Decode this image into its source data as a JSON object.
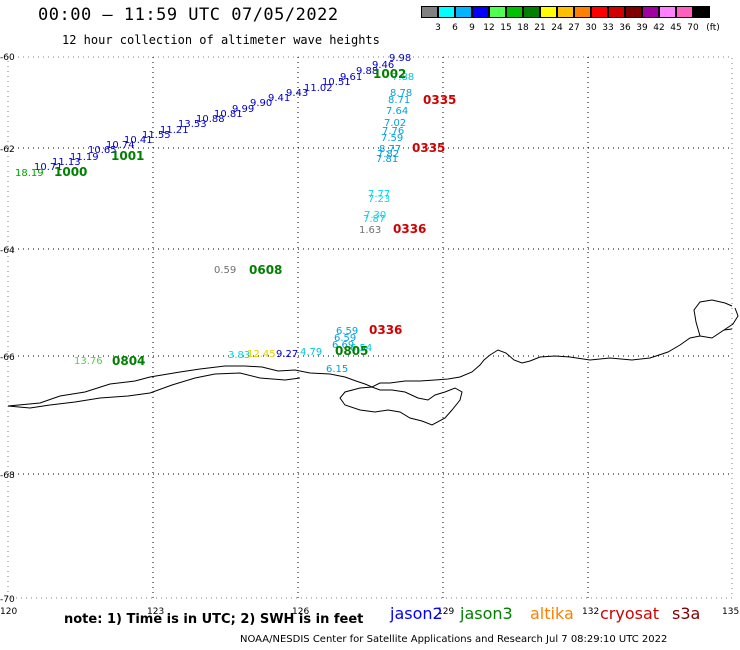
{
  "title": "00:00 – 11:59 UTC 07/05/2022",
  "subtitle": "12 hour collection of altimeter wave heights",
  "colorbar": {
    "colors": [
      "#808080",
      "#00ffff",
      "#00b4ff",
      "#0000ff",
      "#50ff50",
      "#00c000",
      "#008000",
      "#ffff00",
      "#ffc000",
      "#ff8000",
      "#ff0000",
      "#d00000",
      "#800000",
      "#a000a0",
      "#ff80ff",
      "#ff60c0",
      "#000000"
    ],
    "labels": [
      "3",
      "6",
      "9",
      "12",
      "15",
      "18",
      "21",
      "24",
      "27",
      "30",
      "33",
      "36",
      "39",
      "42",
      "45",
      "70"
    ],
    "unit": "(ft)"
  },
  "axes": {
    "x_ticks": [
      "120",
      "123",
      "126",
      "129",
      "132",
      "135"
    ],
    "y_ticks": [
      "-60",
      "-62",
      "-64",
      "-66",
      "-68",
      "-70"
    ]
  },
  "observations": {
    "jason2_track": [
      "18.19",
      "10.71",
      "11.13",
      "11.19",
      "10.65",
      "10.74",
      "10.41",
      "11.55",
      "11.21",
      "13.53",
      "10.88",
      "10.81",
      "9.99",
      "9.90",
      "9.41",
      "9.43",
      "11.02",
      "10.51",
      "9.61",
      "9.88",
      "9.46",
      "9.98"
    ],
    "cyan_cluster": [
      "7.88",
      "8.78",
      "8.71",
      "7.64",
      "7.02",
      "7.76",
      "7.59",
      "8.77",
      "7.82",
      "7.81",
      "7.77",
      "7.23",
      "7.30",
      "7.87",
      "6.59",
      "6.59",
      "6.69",
      "6.15",
      "3.83",
      "9.27",
      "4.79",
      "6.54"
    ],
    "misc": [
      "1.63",
      "0.59",
      "13.76",
      "12.45"
    ]
  },
  "time_marks": {
    "jason3_1": "1002",
    "jason3_2": "1001",
    "jason3_3": "1000",
    "jason3_4": "0608",
    "jason3_5": "0805",
    "jason3_6": "0804",
    "cryosat_1": "0335",
    "cryosat_2": "0335",
    "cryosat_3": "0336",
    "cryosat_4": "0336"
  },
  "note": "note:  1) Time is in UTC;  2) SWH is in feet",
  "legend": {
    "jason2": {
      "label": "jason2",
      "color": "#0000ff"
    },
    "jason3": {
      "label": "jason3",
      "color": "#008000"
    },
    "altika": {
      "label": "altika",
      "color": "#ff8000"
    },
    "cryosat": {
      "label": "cryosat",
      "color": "#d00000"
    },
    "s3a": {
      "label": "s3a",
      "color": "#800000"
    }
  },
  "credit": "NOAA/NESDIS Center for Satellite Applications and Research    Jul  7 08:29:10 UTC 2022"
}
